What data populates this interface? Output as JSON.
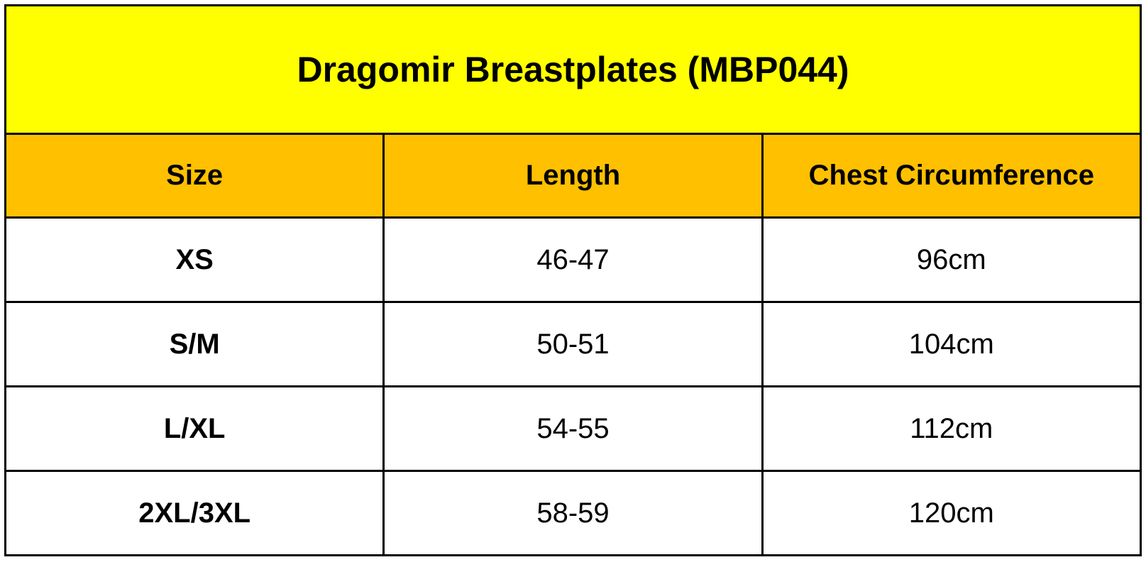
{
  "header": {
    "title": "Dragomir Breastplates (MBP044)"
  },
  "table": {
    "columns": [
      "Size",
      "Length",
      "Chest Circumference"
    ],
    "rows": [
      [
        "XS",
        "46-47",
        "96cm"
      ],
      [
        "S/M",
        "50-51",
        "104cm"
      ],
      [
        "L/XL",
        "54-55",
        "112cm"
      ],
      [
        "2XL/3XL",
        "58-59",
        "120cm"
      ]
    ]
  }
}
